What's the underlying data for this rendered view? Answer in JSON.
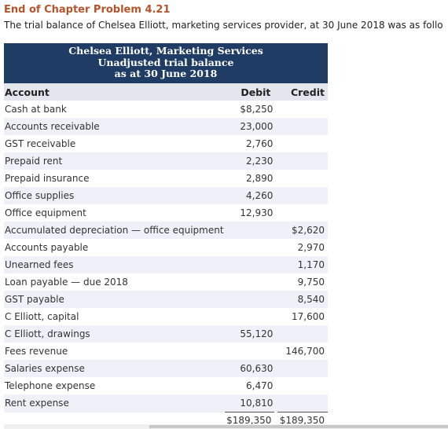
{
  "heading": "End of Chapter Problem 4.21",
  "intro": "The trial balance of Chelsea Elliott, marketing services provider, at 30 June 2018 was as follo",
  "trial_balance": {
    "title_line1": "Chelsea Elliott, Marketing Services",
    "title_line2": "Unadjusted trial balance",
    "title_line3": "as at 30 June 2018",
    "columns": {
      "account": "Account",
      "debit": "Debit",
      "credit": "Credit"
    },
    "rows": [
      {
        "account": "Cash at bank",
        "debit": "$8,250",
        "credit": ""
      },
      {
        "account": "Accounts receivable",
        "debit": "23,000",
        "credit": ""
      },
      {
        "account": "GST receivable",
        "debit": "2,760",
        "credit": ""
      },
      {
        "account": "Prepaid rent",
        "debit": "2,230",
        "credit": ""
      },
      {
        "account": "Prepaid insurance",
        "debit": "2,890",
        "credit": ""
      },
      {
        "account": "Office supplies",
        "debit": "4,260",
        "credit": ""
      },
      {
        "account": "Office equipment",
        "debit": "12,930",
        "credit": ""
      },
      {
        "account": "Accumulated depreciation — office equipment",
        "debit": "",
        "credit": "$2,620"
      },
      {
        "account": "Accounts payable",
        "debit": "",
        "credit": "2,970"
      },
      {
        "account": "Unearned fees",
        "debit": "",
        "credit": "1,170"
      },
      {
        "account": "Loan payable — due 2018",
        "debit": "",
        "credit": "9,750"
      },
      {
        "account": "GST payable",
        "debit": "",
        "credit": "8,540"
      },
      {
        "account": "C Elliott, capital",
        "debit": "",
        "credit": "17,600"
      },
      {
        "account": "C Elliott, drawings",
        "debit": "55,120",
        "credit": ""
      },
      {
        "account": "Fees revenue",
        "debit": "",
        "credit": "146,700"
      },
      {
        "account": "Salaries expense",
        "debit": "60,630",
        "credit": ""
      },
      {
        "account": "Telephone expense",
        "debit": "6,470",
        "credit": ""
      },
      {
        "account": "Rent expense",
        "debit": "10,810",
        "credit": ""
      }
    ],
    "totals": {
      "debit": "$189,350",
      "credit": "$189,350"
    }
  }
}
